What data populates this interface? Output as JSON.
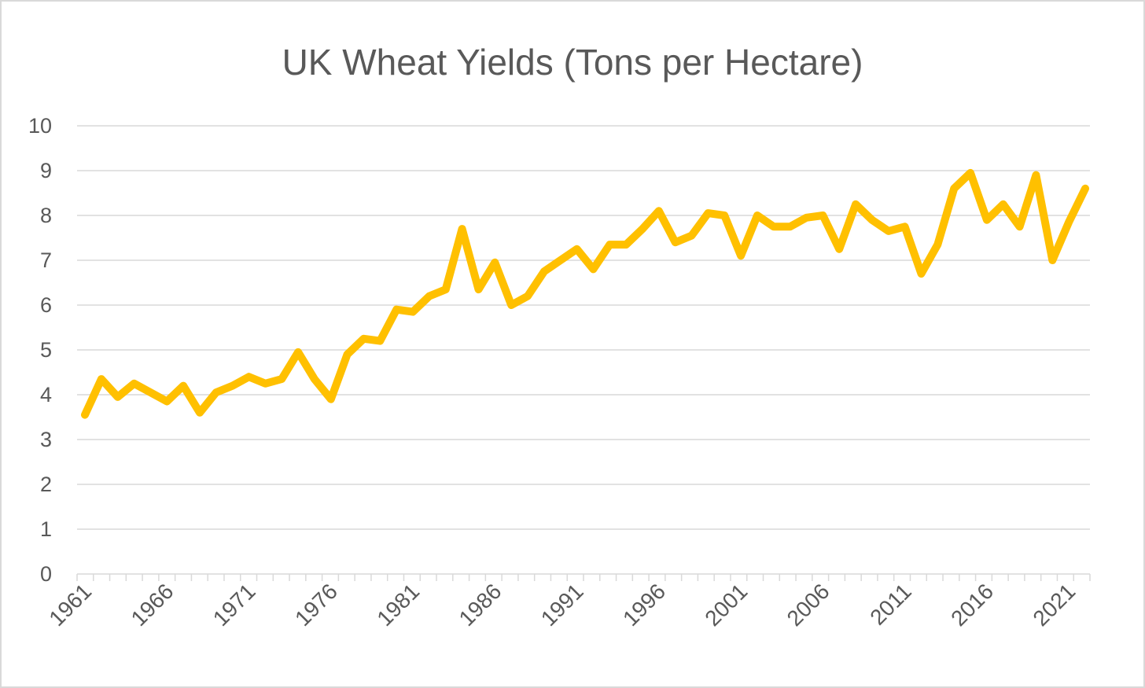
{
  "chart_data": {
    "type": "line",
    "title": "UK Wheat Yields (Tons per Hectare)",
    "xlabel": "",
    "ylabel": "",
    "ylim": [
      0,
      10
    ],
    "yticks": [
      "0",
      "1",
      "2",
      "3",
      "4",
      "5",
      "6",
      "7",
      "8",
      "9",
      "10"
    ],
    "xtick_labels": [
      "1961",
      "1966",
      "1971",
      "1976",
      "1981",
      "1986",
      "1991",
      "1996",
      "2001",
      "2006",
      "2011",
      "2016",
      "2021"
    ],
    "grid": true,
    "legend": "none",
    "color": "#FFC000",
    "x": [
      1961,
      1962,
      1963,
      1964,
      1965,
      1966,
      1967,
      1968,
      1969,
      1970,
      1971,
      1972,
      1973,
      1974,
      1975,
      1976,
      1977,
      1978,
      1979,
      1980,
      1981,
      1982,
      1983,
      1984,
      1985,
      1986,
      1987,
      1988,
      1989,
      1990,
      1991,
      1992,
      1993,
      1994,
      1995,
      1996,
      1997,
      1998,
      1999,
      2000,
      2001,
      2002,
      2003,
      2004,
      2005,
      2006,
      2007,
      2008,
      2009,
      2010,
      2011,
      2012,
      2013,
      2014,
      2015,
      2016,
      2017,
      2018,
      2019,
      2020,
      2021,
      2022
    ],
    "series": [
      {
        "values": [
          3.55,
          4.35,
          3.95,
          4.25,
          4.05,
          3.85,
          4.2,
          3.6,
          4.05,
          4.2,
          4.4,
          4.25,
          4.35,
          4.95,
          4.35,
          3.9,
          4.9,
          5.25,
          5.2,
          5.9,
          5.85,
          6.2,
          6.35,
          7.7,
          6.35,
          6.95,
          6.0,
          6.2,
          6.75,
          7.0,
          7.25,
          6.8,
          7.35,
          7.35,
          7.7,
          8.1,
          7.4,
          7.55,
          8.05,
          8.0,
          7.1,
          8.0,
          7.75,
          7.75,
          7.95,
          8.0,
          7.25,
          8.25,
          7.9,
          7.65,
          7.75,
          6.7,
          7.35,
          8.6,
          8.95,
          7.9,
          8.25,
          7.75,
          8.9,
          7.0,
          7.85,
          8.6
        ]
      }
    ]
  }
}
